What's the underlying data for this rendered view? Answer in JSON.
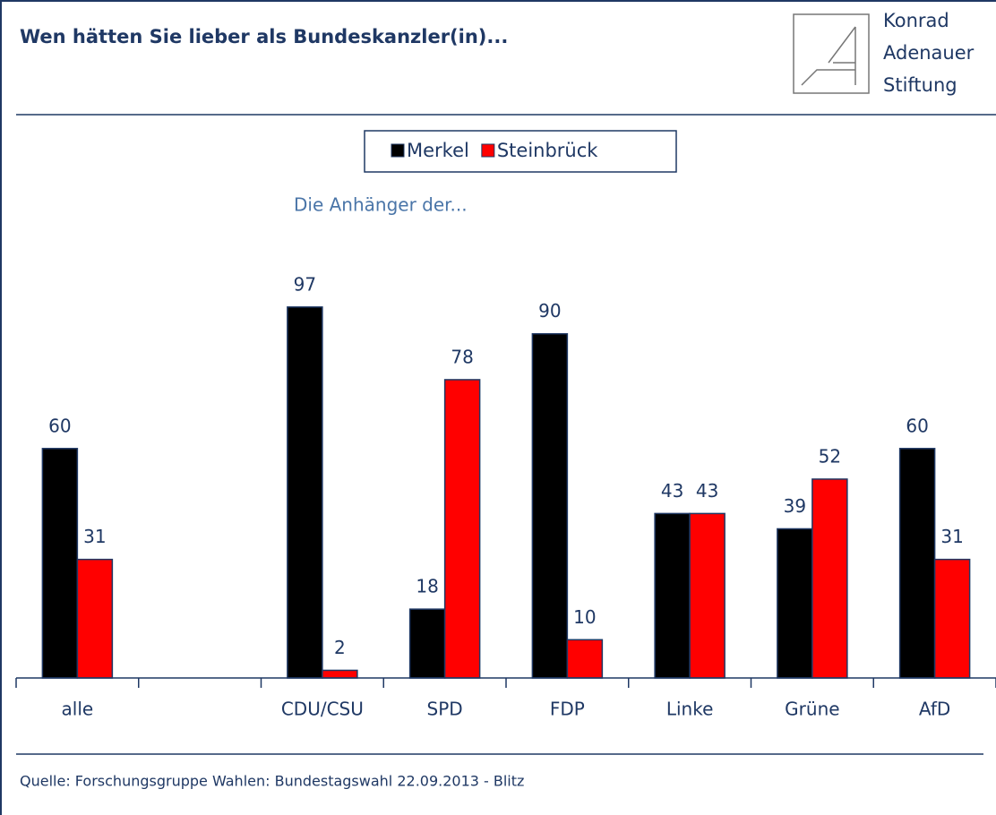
{
  "logo": [
    "Konrad",
    "Adenauer",
    "Stiftung"
  ],
  "chart_data": {
    "type": "bar",
    "title": "Wen hätten Sie lieber als Bundeskanzler(in)...",
    "subtitle": "Die Anhänger der...",
    "categories": [
      "alle",
      null,
      "CDU/CSU",
      "SPD",
      "FDP",
      "Linke",
      "Grüne",
      "AfD"
    ],
    "series": [
      {
        "name": "Merkel",
        "color": "#000000",
        "values": [
          60,
          null,
          97,
          18,
          90,
          43,
          39,
          60
        ]
      },
      {
        "name": "Steinbrück",
        "color": "#ff0000",
        "values": [
          31,
          null,
          2,
          78,
          10,
          43,
          52,
          31
        ]
      }
    ],
    "ylim": [
      0,
      100
    ],
    "legend": "top",
    "source": "Quelle: Forschungsgruppe Wahlen: Bundestagswahl 22.09.2013 - Blitz"
  }
}
